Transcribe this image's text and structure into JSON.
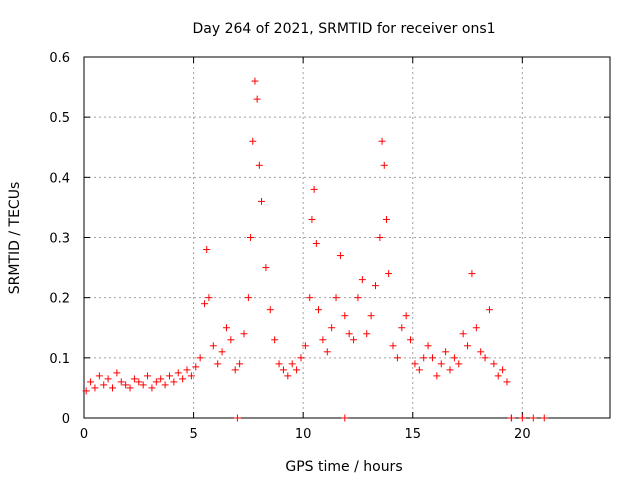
{
  "chart_data": {
    "type": "scatter",
    "title": "Day 264 of 2021, SRMTID for receiver ons1",
    "xlabel": "GPS time / hours",
    "ylabel": "SRMTID / TECUs",
    "xlim": [
      0,
      24
    ],
    "ylim": [
      0,
      0.6
    ],
    "xticks": [
      0,
      5,
      10,
      15,
      20
    ],
    "yticks": [
      0,
      0.1,
      0.2,
      0.3,
      0.4,
      0.5,
      0.6
    ],
    "grid": true,
    "marker": "+",
    "color": "#ff0000",
    "series": [
      {
        "name": "SRMTID",
        "x": [
          0.1,
          0.3,
          0.5,
          0.7,
          0.9,
          1.1,
          1.3,
          1.5,
          1.7,
          1.9,
          2.1,
          2.3,
          2.5,
          2.7,
          2.9,
          3.1,
          3.3,
          3.5,
          3.7,
          3.9,
          4.1,
          4.3,
          4.5,
          4.7,
          4.9,
          5.1,
          5.3,
          5.5,
          5.6,
          5.7,
          5.9,
          6.1,
          6.3,
          6.5,
          6.7,
          6.9,
          7.1,
          7.3,
          7.5,
          7.6,
          7.7,
          7.8,
          7.9,
          8.0,
          8.1,
          8.3,
          8.5,
          8.7,
          8.9,
          9.1,
          9.3,
          9.5,
          9.7,
          9.9,
          10.1,
          10.3,
          10.4,
          10.5,
          10.6,
          10.7,
          10.9,
          11.1,
          11.3,
          11.5,
          11.7,
          11.9,
          12.1,
          12.3,
          12.5,
          12.7,
          12.9,
          13.1,
          13.3,
          13.5,
          13.6,
          13.7,
          13.8,
          13.9,
          14.1,
          14.3,
          14.5,
          14.7,
          14.9,
          15.1,
          15.3,
          15.5,
          15.7,
          15.9,
          16.1,
          16.3,
          16.5,
          16.7,
          16.9,
          17.1,
          17.3,
          17.5,
          17.7,
          17.9,
          18.1,
          18.3,
          18.5,
          18.7,
          18.9,
          19.1,
          19.3,
          19.5
        ],
        "y": [
          0.045,
          0.06,
          0.05,
          0.07,
          0.055,
          0.065,
          0.05,
          0.075,
          0.06,
          0.055,
          0.05,
          0.065,
          0.06,
          0.055,
          0.07,
          0.05,
          0.06,
          0.065,
          0.055,
          0.07,
          0.06,
          0.075,
          0.065,
          0.08,
          0.07,
          0.085,
          0.1,
          0.19,
          0.28,
          0.2,
          0.12,
          0.09,
          0.11,
          0.15,
          0.13,
          0.08,
          0.09,
          0.14,
          0.2,
          0.3,
          0.46,
          0.56,
          0.53,
          0.42,
          0.36,
          0.25,
          0.18,
          0.13,
          0.09,
          0.08,
          0.07,
          0.09,
          0.08,
          0.1,
          0.12,
          0.2,
          0.33,
          0.38,
          0.29,
          0.18,
          0.13,
          0.11,
          0.15,
          0.2,
          0.27,
          0.17,
          0.14,
          0.13,
          0.2,
          0.23,
          0.14,
          0.17,
          0.22,
          0.3,
          0.46,
          0.42,
          0.33,
          0.24,
          0.12,
          0.1,
          0.15,
          0.17,
          0.13,
          0.09,
          0.08,
          0.1,
          0.12,
          0.1,
          0.07,
          0.09,
          0.11,
          0.08,
          0.1,
          0.09,
          0.14,
          0.12,
          0.24,
          0.15,
          0.11,
          0.1,
          0.18,
          0.09,
          0.07,
          0.08,
          0.06,
          0.0
        ]
      }
    ],
    "zero_markers_x": [
      7.0,
      11.9,
      19.5,
      20.0,
      20.5,
      21.0
    ]
  }
}
